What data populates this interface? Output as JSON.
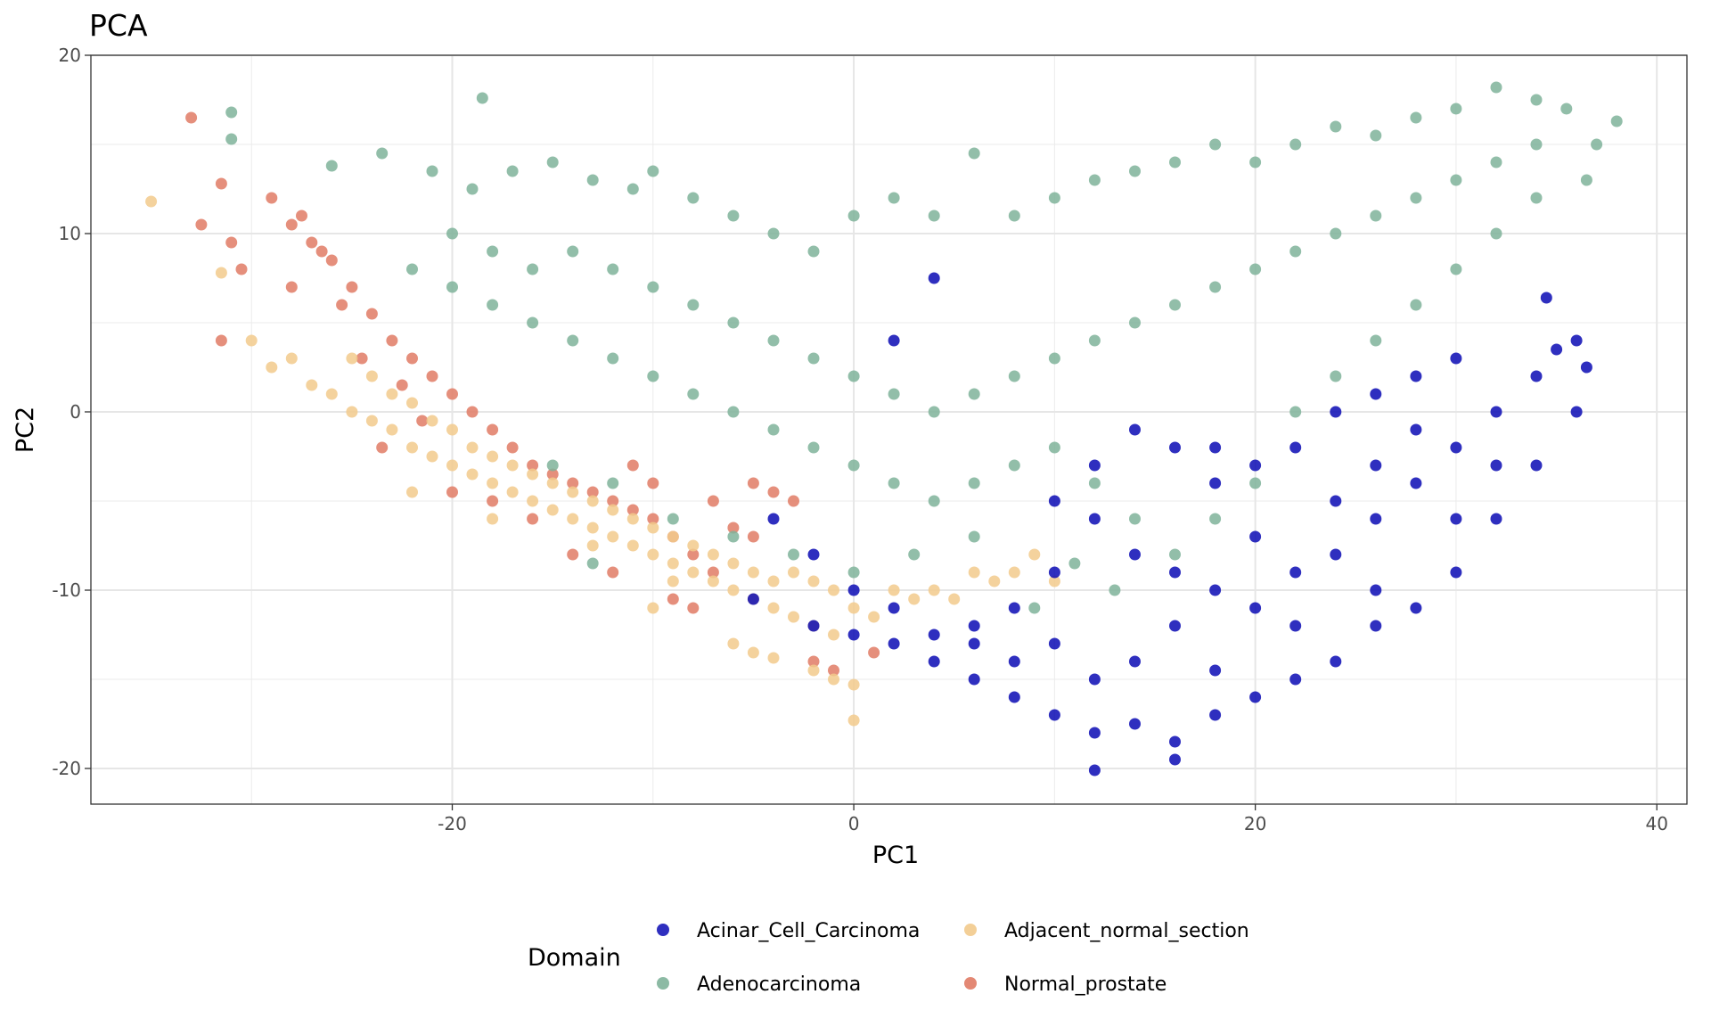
{
  "chart_data": {
    "type": "scatter",
    "title": "PCA",
    "xlabel": "PC1",
    "ylabel": "PC2",
    "xlim": [
      -38,
      41.5
    ],
    "ylim": [
      -22,
      20
    ],
    "xticks": [
      -20,
      0,
      20,
      40
    ],
    "yticks": [
      -20,
      -10,
      0,
      10,
      20
    ],
    "xtick_labels": [
      "-20",
      "0",
      "20",
      "40"
    ],
    "ytick_labels": [
      "-20",
      "-10",
      "0",
      "10",
      "20"
    ],
    "grid": true,
    "legend": {
      "title": "Domain",
      "position": "bottom",
      "entries": [
        "Acinar_Cell_Carcinoma",
        "Adjacent_normal_section",
        "Adenocarcinoma",
        "Normal_prostate"
      ]
    },
    "series": [
      {
        "name": "Normal_prostate",
        "color": "#E07B65",
        "points": [
          [
            -33,
            16.5
          ],
          [
            -31.5,
            12.8
          ],
          [
            -32.5,
            10.5
          ],
          [
            -31,
            9.5
          ],
          [
            -30.5,
            8
          ],
          [
            -31.5,
            4
          ],
          [
            -29,
            12
          ],
          [
            -28,
            10.5
          ],
          [
            -27,
            9.5
          ],
          [
            -26,
            8.5
          ],
          [
            -25,
            7
          ],
          [
            -24,
            5.5
          ],
          [
            -23,
            4
          ],
          [
            -22,
            3
          ],
          [
            -21,
            2
          ],
          [
            -20,
            1
          ],
          [
            -19,
            0
          ],
          [
            -18,
            -1
          ],
          [
            -17,
            -2
          ],
          [
            -16,
            -3
          ],
          [
            -15,
            -3.5
          ],
          [
            -14,
            -4
          ],
          [
            -13,
            -4.5
          ],
          [
            -12,
            -5
          ],
          [
            -11,
            -5.5
          ],
          [
            -10,
            -6
          ],
          [
            -9,
            -7
          ],
          [
            -8,
            -8
          ],
          [
            -7,
            -9
          ],
          [
            -6,
            -6.5
          ],
          [
            -5,
            -4
          ],
          [
            -4,
            -4.5
          ],
          [
            -3,
            -5
          ],
          [
            -20,
            -4.5
          ],
          [
            -18,
            -5
          ],
          [
            -16,
            -6
          ],
          [
            -14,
            -8
          ],
          [
            -12,
            -9
          ],
          [
            -9,
            -10.5
          ],
          [
            -8,
            -11
          ],
          [
            -2,
            -14
          ],
          [
            -1,
            -14.5
          ],
          [
            -28,
            7
          ],
          [
            -27.5,
            11
          ],
          [
            -26.5,
            9
          ],
          [
            -25.5,
            6
          ],
          [
            -24.5,
            3
          ],
          [
            -22.5,
            1.5
          ],
          [
            -21.5,
            -0.5
          ],
          [
            -23.5,
            -2
          ],
          [
            -11,
            -3
          ],
          [
            -10,
            -4
          ],
          [
            -7,
            -5
          ],
          [
            -5,
            -7
          ],
          [
            1,
            -13.5
          ]
        ]
      },
      {
        "name": "Adjacent_normal_section",
        "color": "#F2CA8C",
        "points": [
          [
            -35,
            11.8
          ],
          [
            -31.5,
            7.8
          ],
          [
            -30,
            4
          ],
          [
            -29,
            2.5
          ],
          [
            -28,
            3
          ],
          [
            -27,
            1.5
          ],
          [
            -26,
            1
          ],
          [
            -25,
            0
          ],
          [
            -24,
            -0.5
          ],
          [
            -23,
            -1
          ],
          [
            -22,
            -2
          ],
          [
            -21,
            -2.5
          ],
          [
            -20,
            -3
          ],
          [
            -19,
            -3.5
          ],
          [
            -18,
            -4
          ],
          [
            -17,
            -4.5
          ],
          [
            -16,
            -5
          ],
          [
            -15,
            -5.5
          ],
          [
            -14,
            -6
          ],
          [
            -13,
            -6.5
          ],
          [
            -12,
            -7
          ],
          [
            -11,
            -7.5
          ],
          [
            -10,
            -8
          ],
          [
            -9,
            -8.5
          ],
          [
            -8,
            -9
          ],
          [
            -7,
            -9.5
          ],
          [
            -6,
            -10
          ],
          [
            -5,
            -10.5
          ],
          [
            -4,
            -11
          ],
          [
            -3,
            -11.5
          ],
          [
            -2,
            -12
          ],
          [
            -1,
            -12.5
          ],
          [
            0,
            -11
          ],
          [
            1,
            -11.5
          ],
          [
            2,
            -10
          ],
          [
            3,
            -10.5
          ],
          [
            4,
            -10
          ],
          [
            5,
            -10.5
          ],
          [
            6,
            -9
          ],
          [
            7,
            -9.5
          ],
          [
            8,
            -9
          ],
          [
            9,
            -8
          ],
          [
            10,
            -9.5
          ],
          [
            -25,
            3
          ],
          [
            -24,
            2
          ],
          [
            -23,
            1
          ],
          [
            -22,
            0.5
          ],
          [
            -21,
            -0.5
          ],
          [
            -20,
            -1
          ],
          [
            -19,
            -2
          ],
          [
            -18,
            -2.5
          ],
          [
            -17,
            -3
          ],
          [
            -16,
            -3.5
          ],
          [
            -15,
            -4
          ],
          [
            -14,
            -4.5
          ],
          [
            -13,
            -5
          ],
          [
            -12,
            -5.5
          ],
          [
            -11,
            -6
          ],
          [
            -10,
            -6.5
          ],
          [
            -9,
            -7
          ],
          [
            -8,
            -7.5
          ],
          [
            -7,
            -8
          ],
          [
            -6,
            -8.5
          ],
          [
            -5,
            -9
          ],
          [
            -4,
            -9.5
          ],
          [
            -3,
            -9
          ],
          [
            -2,
            -9.5
          ],
          [
            -1,
            -10
          ],
          [
            -6,
            -13
          ],
          [
            -5,
            -13.5
          ],
          [
            -4,
            -13.8
          ],
          [
            -2,
            -14.5
          ],
          [
            -1,
            -15
          ],
          [
            0,
            -15.3
          ],
          [
            0,
            -17.3
          ],
          [
            -10,
            -11
          ],
          [
            -22,
            -4.5
          ],
          [
            -18,
            -6
          ],
          [
            -13,
            -7.5
          ],
          [
            -9,
            -9.5
          ]
        ]
      },
      {
        "name": "Adenocarcinoma",
        "color": "#7FB39A",
        "points": [
          [
            -31,
            16.8
          ],
          [
            -31,
            15.3
          ],
          [
            -18.5,
            17.6
          ],
          [
            -26,
            13.8
          ],
          [
            -23.5,
            14.5
          ],
          [
            -21,
            13.5
          ],
          [
            -19,
            12.5
          ],
          [
            -17,
            13.5
          ],
          [
            -15,
            14
          ],
          [
            -13,
            13
          ],
          [
            -11,
            12.5
          ],
          [
            -10,
            13.5
          ],
          [
            -8,
            12
          ],
          [
            -6,
            11
          ],
          [
            -4,
            10
          ],
          [
            -2,
            9
          ],
          [
            0,
            11
          ],
          [
            2,
            12
          ],
          [
            4,
            11
          ],
          [
            6,
            14.5
          ],
          [
            8,
            11
          ],
          [
            10,
            12
          ],
          [
            12,
            13
          ],
          [
            14,
            13.5
          ],
          [
            16,
            14
          ],
          [
            18,
            15
          ],
          [
            20,
            14
          ],
          [
            22,
            15
          ],
          [
            24,
            16
          ],
          [
            26,
            15.5
          ],
          [
            28,
            16.5
          ],
          [
            30,
            17
          ],
          [
            32,
            18.2
          ],
          [
            34,
            17.5
          ],
          [
            35.5,
            17
          ],
          [
            37,
            15
          ],
          [
            38,
            16.3
          ],
          [
            36.5,
            13
          ],
          [
            -22,
            8
          ],
          [
            -20,
            7
          ],
          [
            -18,
            6
          ],
          [
            -16,
            5
          ],
          [
            -14,
            4
          ],
          [
            -12,
            3
          ],
          [
            -10,
            2
          ],
          [
            -8,
            1
          ],
          [
            -6,
            0
          ],
          [
            -4,
            -1
          ],
          [
            -2,
            -2
          ],
          [
            0,
            -3
          ],
          [
            2,
            -4
          ],
          [
            4,
            -5
          ],
          [
            6,
            -4
          ],
          [
            8,
            -3
          ],
          [
            10,
            -2
          ],
          [
            12,
            -4
          ],
          [
            14,
            -6
          ],
          [
            16,
            -8
          ],
          [
            18,
            -6
          ],
          [
            20,
            -4
          ],
          [
            22,
            0
          ],
          [
            24,
            2
          ],
          [
            26,
            4
          ],
          [
            28,
            6
          ],
          [
            30,
            8
          ],
          [
            32,
            10
          ],
          [
            34,
            12
          ],
          [
            -20,
            10
          ],
          [
            -18,
            9
          ],
          [
            -16,
            8
          ],
          [
            -14,
            9
          ],
          [
            -12,
            8
          ],
          [
            -10,
            7
          ],
          [
            -8,
            6
          ],
          [
            -6,
            5
          ],
          [
            -4,
            4
          ],
          [
            -2,
            3
          ],
          [
            0,
            2
          ],
          [
            2,
            1
          ],
          [
            4,
            0
          ],
          [
            6,
            1
          ],
          [
            8,
            2
          ],
          [
            10,
            3
          ],
          [
            12,
            4
          ],
          [
            14,
            5
          ],
          [
            16,
            6
          ],
          [
            18,
            7
          ],
          [
            20,
            8
          ],
          [
            22,
            9
          ],
          [
            24,
            10
          ],
          [
            26,
            11
          ],
          [
            28,
            12
          ],
          [
            30,
            13
          ],
          [
            32,
            14
          ],
          [
            34,
            15
          ],
          [
            -15,
            -3
          ],
          [
            -12,
            -4
          ],
          [
            -9,
            -6
          ],
          [
            -6,
            -7
          ],
          [
            -3,
            -8
          ],
          [
            0,
            -9
          ],
          [
            3,
            -8
          ],
          [
            6,
            -7
          ],
          [
            9,
            -11
          ],
          [
            11,
            -8.5
          ],
          [
            13,
            -10
          ],
          [
            -13,
            -8.5
          ]
        ]
      },
      {
        "name": "Acinar_Cell_Carcinoma",
        "color": "#0A0AB4",
        "points": [
          [
            -5,
            -10.5
          ],
          [
            -2,
            -12
          ],
          [
            0,
            -12.5
          ],
          [
            2,
            -13
          ],
          [
            4,
            -14
          ],
          [
            6,
            -15
          ],
          [
            8,
            -16
          ],
          [
            10,
            -17
          ],
          [
            12,
            -18
          ],
          [
            14,
            -17.5
          ],
          [
            16,
            -18.5
          ],
          [
            18,
            -17
          ],
          [
            20,
            -16
          ],
          [
            22,
            -15
          ],
          [
            24,
            -14
          ],
          [
            26,
            -12
          ],
          [
            28,
            -11
          ],
          [
            30,
            -9
          ],
          [
            32,
            -6
          ],
          [
            34,
            -3
          ],
          [
            36,
            0
          ],
          [
            36.5,
            2.5
          ],
          [
            36,
            4
          ],
          [
            34.5,
            6.4
          ],
          [
            12,
            -20.1
          ],
          [
            16,
            -19.5
          ],
          [
            10,
            -5
          ],
          [
            12,
            -6
          ],
          [
            14,
            -8
          ],
          [
            16,
            -9
          ],
          [
            18,
            -10
          ],
          [
            20,
            -11
          ],
          [
            22,
            -9
          ],
          [
            24,
            -8
          ],
          [
            26,
            -6
          ],
          [
            28,
            -4
          ],
          [
            30,
            -2
          ],
          [
            32,
            0
          ],
          [
            34,
            2
          ],
          [
            35,
            3.5
          ],
          [
            30,
            3
          ],
          [
            28,
            2
          ],
          [
            26,
            1
          ],
          [
            24,
            0
          ],
          [
            22,
            -2
          ],
          [
            20,
            -3
          ],
          [
            18,
            -4
          ],
          [
            16,
            -2
          ],
          [
            14,
            -1
          ],
          [
            12,
            -3
          ],
          [
            10,
            -9
          ],
          [
            8,
            -11
          ],
          [
            6,
            -12
          ],
          [
            4,
            -12.5
          ],
          [
            2,
            -11
          ],
          [
            0,
            -10
          ],
          [
            -2,
            -8
          ],
          [
            -4,
            -6
          ],
          [
            2,
            4
          ],
          [
            4,
            7.5
          ],
          [
            6,
            -13
          ],
          [
            14,
            -14
          ],
          [
            18,
            -14.5
          ],
          [
            22,
            -12
          ],
          [
            26,
            -10
          ],
          [
            30,
            -6
          ],
          [
            32,
            -3
          ],
          [
            20,
            -7
          ],
          [
            24,
            -5
          ],
          [
            28,
            -1
          ],
          [
            16,
            -12
          ],
          [
            10,
            -13
          ],
          [
            8,
            -14
          ],
          [
            12,
            -15
          ],
          [
            18,
            -2
          ],
          [
            26,
            -3
          ]
        ]
      }
    ]
  }
}
